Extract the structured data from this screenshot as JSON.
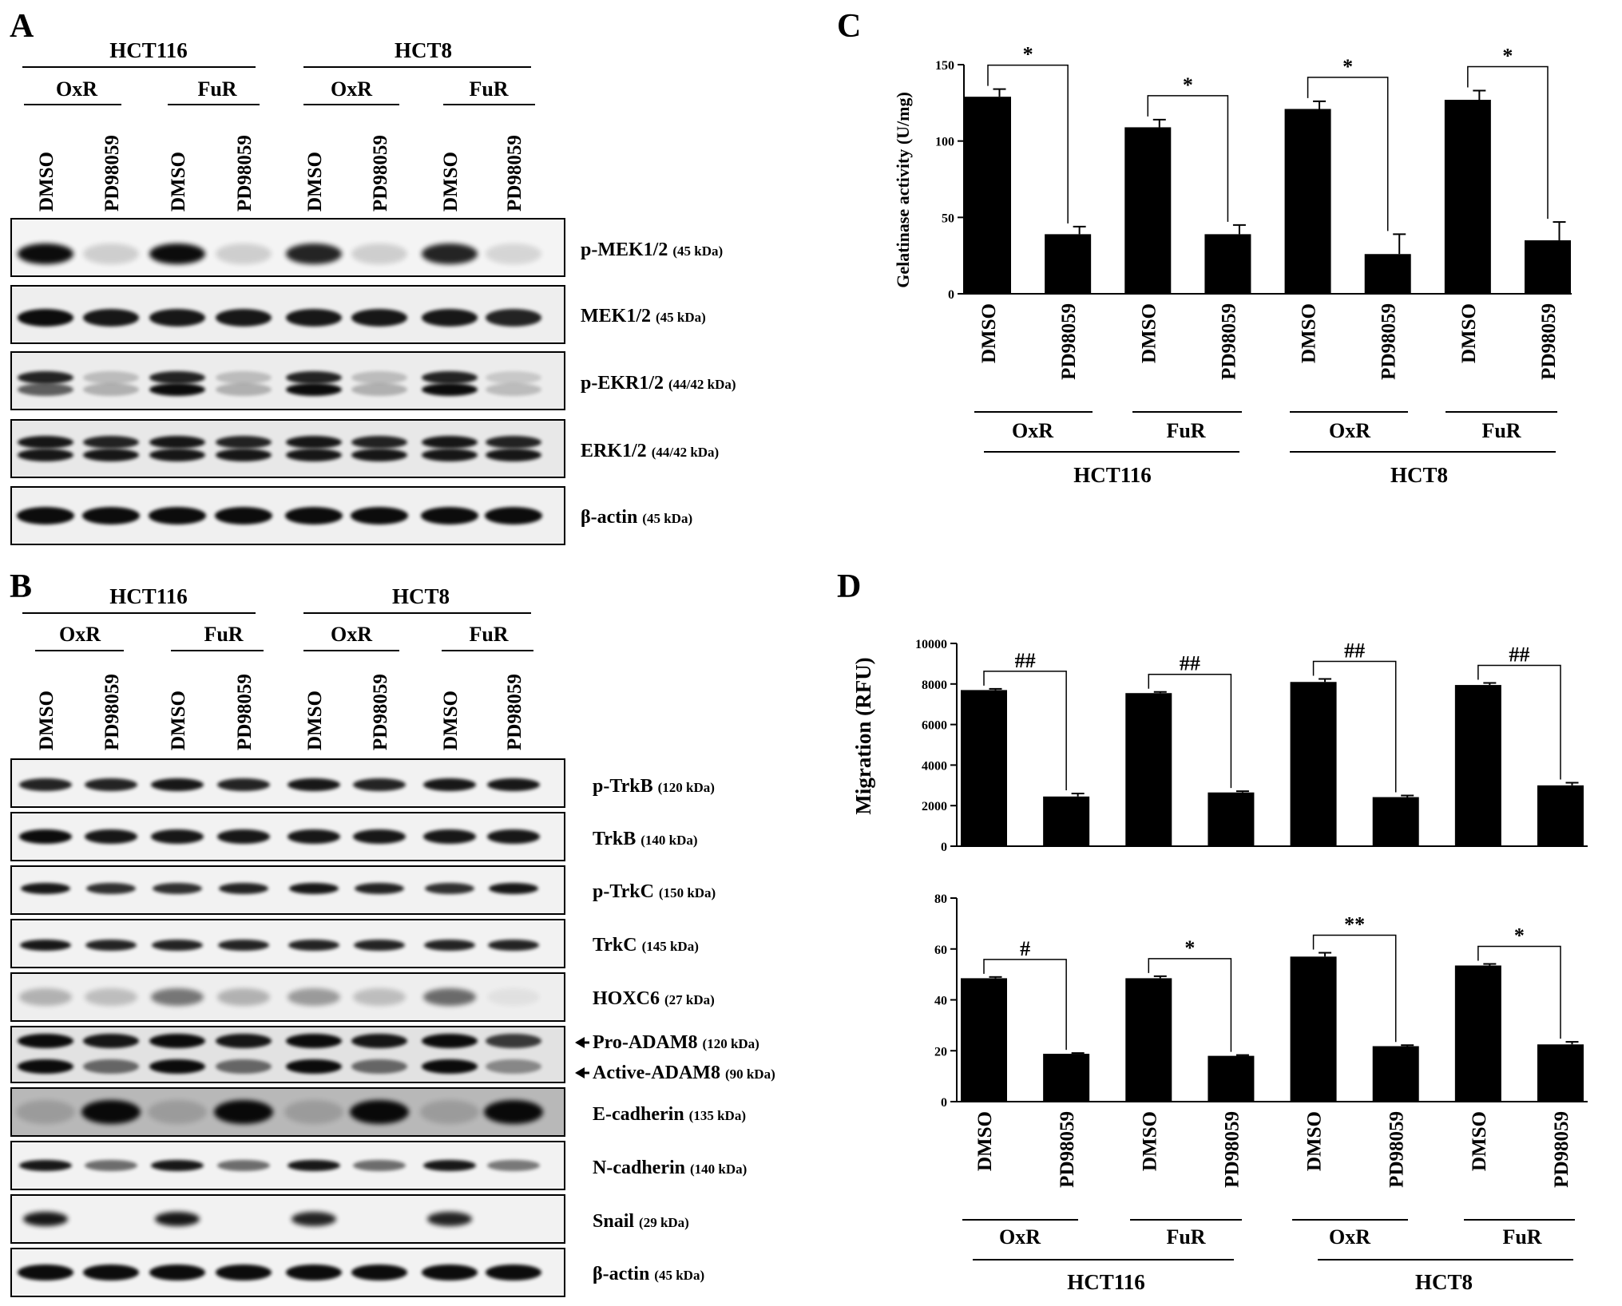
{
  "panels": {
    "a": "A",
    "b": "B",
    "c": "C",
    "d": "D"
  },
  "blot_a": {
    "groups": [
      "HCT116",
      "HCT8"
    ],
    "subgroups": [
      "OxR",
      "FuR",
      "OxR",
      "FuR"
    ],
    "lanes": [
      "DMSO",
      "PD98059",
      "DMSO",
      "PD98059",
      "DMSO",
      "PD98059",
      "DMSO",
      "PD98059"
    ],
    "bands": [
      {
        "name": "p-MEK1/2",
        "kda": "(45 kDa)"
      },
      {
        "name": "MEK1/2",
        "kda": "(45 kDa)"
      },
      {
        "name": "p-EKR1/2",
        "kda": "(44/42 kDa)"
      },
      {
        "name": "ERK1/2",
        "kda": "(44/42 kDa)"
      },
      {
        "name": "β-actin",
        "kda": "(45 kDa)"
      }
    ]
  },
  "blot_b": {
    "groups": [
      "HCT116",
      "HCT8"
    ],
    "subgroups": [
      "OxR",
      "FuR",
      "OxR",
      "FuR"
    ],
    "lanes": [
      "DMSO",
      "PD98059",
      "DMSO",
      "PD98059",
      "DMSO",
      "PD98059",
      "DMSO",
      "PD98059"
    ],
    "bands": [
      {
        "name": "p-TrkB",
        "kda": "(120 kDa)"
      },
      {
        "name": "TrkB",
        "kda": "(140 kDa)"
      },
      {
        "name": "p-TrkC",
        "kda": "(150 kDa)"
      },
      {
        "name": "TrkC",
        "kda": "(145 kDa)"
      },
      {
        "name": "HOXC6",
        "kda": "(27 kDa)"
      },
      {
        "name": "Pro-ADAM8",
        "kda": "(120 kDa)"
      },
      {
        "name": "Active-ADAM8",
        "kda": "(90 kDa)"
      },
      {
        "name": "E-cadherin",
        "kda": "(135 kDa)"
      },
      {
        "name": "N-cadherin",
        "kda": "(140 kDa)"
      },
      {
        "name": "Snail",
        "kda": "(29 kDa)"
      },
      {
        "name": "β-actin",
        "kda": "(45 kDa)"
      }
    ]
  },
  "chart_data": [
    {
      "type": "bar",
      "panel": "C",
      "ylabel": "Gelatinase activity (U/mg)",
      "ylim": [
        0,
        150
      ],
      "yticks": [
        "0",
        "50",
        "100",
        "150"
      ],
      "categories": [
        "DMSO",
        "PD98059",
        "DMSO",
        "PD98059",
        "DMSO",
        "PD98059",
        "DMSO",
        "PD98059"
      ],
      "values": [
        129,
        39,
        109,
        39,
        121,
        26,
        127,
        35
      ],
      "errors": [
        5,
        5,
        5,
        6,
        5,
        13,
        6,
        12
      ],
      "significance": [
        "*",
        "*",
        "*",
        "*"
      ],
      "subgroups": [
        "OxR",
        "FuR",
        "OxR",
        "FuR"
      ],
      "groups": [
        "HCT116",
        "HCT8"
      ]
    },
    {
      "type": "bar",
      "panel": "D",
      "ylabel": "Migration (RFU)",
      "ylim": [
        0,
        10000
      ],
      "yticks": [
        "0",
        "2000",
        "4000",
        "6000",
        "8000",
        "10000"
      ],
      "categories": [
        "DMSO",
        "PD98059",
        "DMSO",
        "PD98059",
        "DMSO",
        "PD98059",
        "DMSO",
        "PD98059"
      ],
      "values": [
        7700,
        2450,
        7550,
        2650,
        8100,
        2420,
        7950,
        3000
      ],
      "errors": [
        60,
        150,
        60,
        60,
        150,
        80,
        100,
        130
      ],
      "significance": [
        "##",
        "##",
        "##",
        "##"
      ]
    },
    {
      "type": "bar",
      "panel": "D",
      "ylim": [
        0,
        80
      ],
      "yticks": [
        "0",
        "20",
        "40",
        "60",
        "80"
      ],
      "categories": [
        "DMSO",
        "PD98059",
        "DMSO",
        "PD98059",
        "DMSO",
        "PD98059",
        "DMSO",
        "PD98059"
      ],
      "values": [
        48.5,
        18.8,
        48.5,
        18.0,
        57.0,
        21.8,
        53.5,
        22.5
      ],
      "errors": [
        0.5,
        0.3,
        0.8,
        0.3,
        1.5,
        0.4,
        0.6,
        1.0
      ],
      "significance": [
        "#",
        "*",
        "**",
        "*"
      ],
      "subgroups": [
        "OxR",
        "FuR",
        "OxR",
        "FuR"
      ],
      "groups": [
        "HCT116",
        "HCT8"
      ]
    }
  ]
}
